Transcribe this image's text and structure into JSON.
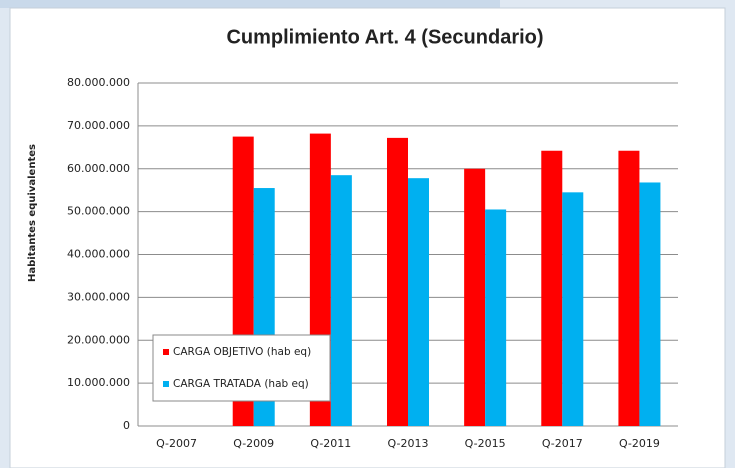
{
  "chart_data": {
    "type": "bar",
    "title": "Cumplimiento Art. 4 (Secundario)",
    "y_label": "Habitantes equivalentes",
    "categories": [
      "Q-2007",
      "Q-2009",
      "Q-2011",
      "Q-2013",
      "Q-2015",
      "Q-2017",
      "Q-2019"
    ],
    "series": [
      {
        "name": "CARGA OBJETIVO (hab eq)",
        "color": "#ff0000",
        "values": [
          null,
          67500000,
          68200000,
          67200000,
          60000000,
          64200000,
          64200000
        ]
      },
      {
        "name": "CARGA TRATADA (hab eq)",
        "color": "#00b0f0",
        "values": [
          null,
          55500000,
          58500000,
          57800000,
          50500000,
          54500000,
          56800000
        ]
      }
    ],
    "ylim": [
      0,
      80000000
    ],
    "yticks": [
      0,
      {
        "value": 10000000,
        "label": "10.000.000"
      },
      {
        "value": 20000000,
        "label": "20.000.000"
      },
      {
        "value": 30000000,
        "label": "30.000.000"
      },
      {
        "value": 40000000,
        "label": "40.000.000"
      },
      {
        "value": 50000000,
        "label": "50.000.000"
      },
      {
        "value": 60000000,
        "label": "60.000.000"
      },
      {
        "value": 70000000,
        "label": "70.000.000"
      },
      {
        "value": 80000000,
        "label": "80.000.000"
      }
    ],
    "grid": true,
    "legend": "lower left"
  }
}
